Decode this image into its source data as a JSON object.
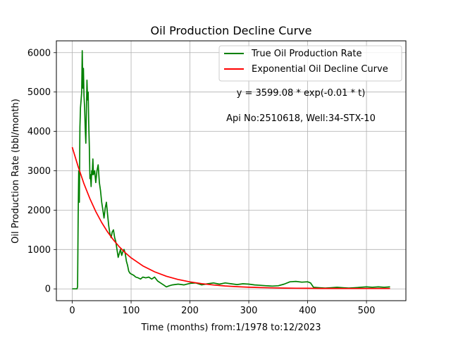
{
  "chart_data": {
    "type": "line",
    "title": "Oil Production Decline Curve",
    "xlabel": "Time (months) from:1/1978 to:12/2023",
    "ylabel": "Oil Production Rate (bbl/month)",
    "xlim": [
      -27,
      567
    ],
    "ylim": [
      -300,
      6300
    ],
    "xticks": [
      0,
      100,
      200,
      300,
      400,
      500
    ],
    "yticks": [
      0,
      1000,
      2000,
      3000,
      4000,
      5000,
      6000
    ],
    "grid": true,
    "legend_position": "top-right",
    "annotations": [
      "y = 3599.08 * exp(-0.01 * t)",
      "Api No:2510618, Well:34-STX-10"
    ],
    "series": [
      {
        "name": "True Oil Production Rate",
        "color": "#008000",
        "x": [
          0,
          8,
          9,
          10,
          11,
          12,
          13,
          14,
          15,
          16,
          17,
          18,
          19,
          20,
          21,
          22,
          23,
          24,
          25,
          26,
          27,
          28,
          29,
          30,
          31,
          32,
          33,
          34,
          35,
          36,
          38,
          40,
          42,
          44,
          46,
          48,
          50,
          52,
          54,
          56,
          58,
          60,
          62,
          64,
          66,
          68,
          70,
          72,
          74,
          76,
          78,
          80,
          82,
          84,
          86,
          88,
          90,
          92,
          94,
          96,
          98,
          100,
          104,
          108,
          112,
          116,
          120,
          125,
          130,
          135,
          140,
          145,
          150,
          155,
          160,
          165,
          170,
          180,
          190,
          200,
          210,
          220,
          230,
          240,
          250,
          260,
          270,
          280,
          290,
          300,
          310,
          320,
          330,
          340,
          350,
          360,
          370,
          380,
          390,
          400,
          405,
          410,
          420,
          430,
          440,
          450,
          460,
          470,
          480,
          490,
          500,
          510,
          520,
          530,
          540
        ],
        "values": [
          0,
          0,
          50,
          1800,
          3000,
          2200,
          4100,
          4600,
          4800,
          5000,
          6050,
          5100,
          5600,
          4900,
          4600,
          4100,
          3700,
          4500,
          5300,
          4800,
          5000,
          4200,
          3600,
          2800,
          2900,
          2600,
          3000,
          2900,
          3300,
          2900,
          3000,
          2700,
          3000,
          3150,
          2700,
          2500,
          2200,
          2000,
          1800,
          2050,
          2200,
          1900,
          1600,
          1400,
          1300,
          1450,
          1500,
          1300,
          1200,
          1000,
          800,
          900,
          1000,
          850,
          950,
          1000,
          900,
          700,
          600,
          450,
          400,
          380,
          350,
          300,
          280,
          250,
          300,
          280,
          300,
          250,
          300,
          200,
          150,
          100,
          50,
          80,
          100,
          120,
          100,
          140,
          150,
          100,
          130,
          150,
          120,
          150,
          130,
          110,
          130,
          120,
          100,
          90,
          80,
          70,
          80,
          120,
          180,
          190,
          170,
          180,
          150,
          40,
          30,
          20,
          30,
          40,
          30,
          20,
          30,
          40,
          50,
          40,
          50,
          40,
          50
        ]
      },
      {
        "name": "Exponential Oil Decline Curve",
        "color": "#ff0000",
        "x": [
          0,
          10,
          20,
          30,
          40,
          50,
          60,
          70,
          80,
          90,
          100,
          120,
          140,
          160,
          180,
          200,
          220,
          240,
          260,
          280,
          300,
          320,
          340,
          360,
          380,
          400,
          420,
          440,
          460,
          480,
          500,
          520,
          540
        ],
        "values": [
          3599,
          3105,
          2667,
          2290,
          1964,
          1686,
          1448,
          1243,
          1068,
          918,
          789,
          584,
          433,
          321,
          238,
          177,
          132,
          98,
          74,
          56,
          42,
          32,
          25,
          20,
          17,
          14,
          12,
          11,
          10,
          10,
          9,
          9,
          9
        ]
      }
    ]
  }
}
